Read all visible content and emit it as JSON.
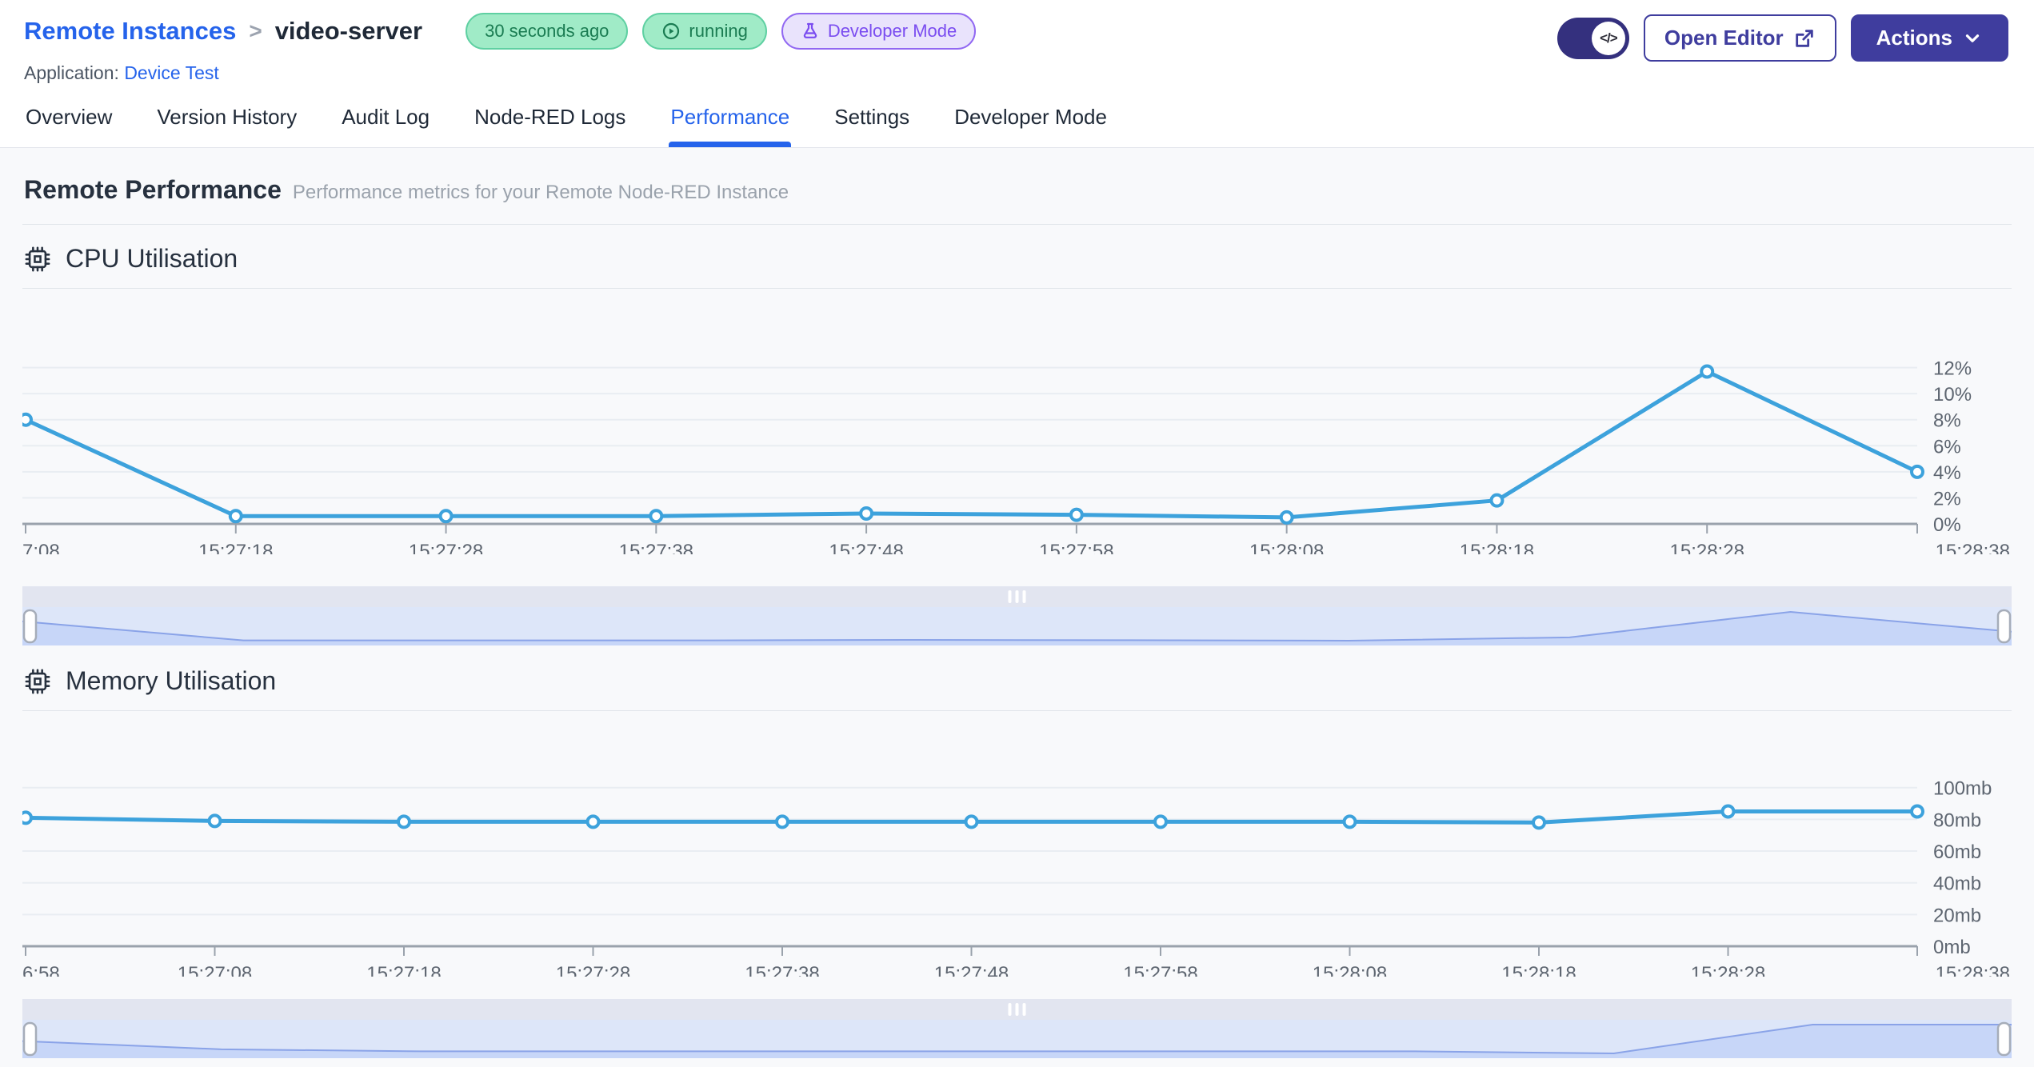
{
  "header": {
    "breadcrumb": "Remote Instances",
    "breadcrumb_separator": ">",
    "instance_name": "video-server",
    "badges": {
      "last_seen": "30 seconds ago",
      "status": "running",
      "mode": "Developer Mode"
    },
    "application_label": "Application:",
    "application_name": "Device Test",
    "developer_toggle_icon": "code-icon",
    "open_editor_label": "Open Editor",
    "open_editor_icon": "external-link-icon",
    "actions_label": "Actions",
    "actions_icon": "chevron-down-icon"
  },
  "tabs": [
    {
      "label": "Overview",
      "active": false
    },
    {
      "label": "Version History",
      "active": false
    },
    {
      "label": "Audit Log",
      "active": false
    },
    {
      "label": "Node-RED Logs",
      "active": false
    },
    {
      "label": "Performance",
      "active": true
    },
    {
      "label": "Settings",
      "active": false
    },
    {
      "label": "Developer Mode",
      "active": false
    }
  ],
  "page": {
    "title": "Remote Performance",
    "subtitle": "Performance metrics for your Remote Node-RED Instance"
  },
  "colors": {
    "accent_blue": "#2563eb",
    "indigo_button": "#3f3d9e",
    "chart_line": "#3da2dc",
    "badge_green_bg": "#a0ebc7",
    "badge_green_text": "#1a7c52",
    "badge_purple_bg": "#e9e3fc",
    "badge_purple_text": "#7a4cf0",
    "navigator_body": "#dde6f9",
    "navigator_area": "#c7d6f8"
  },
  "chart_data": [
    {
      "type": "line",
      "title": "CPU Utilisation",
      "icon": "cpu-chip-icon",
      "x_labels": [
        "7:08",
        "15:27:18",
        "15:27:28",
        "15:27:38",
        "15:27:48",
        "15:27:58",
        "15:28:08",
        "15:28:18",
        "15:28:28",
        "15:28:38"
      ],
      "values": [
        8,
        0.6,
        0.6,
        0.6,
        0.8,
        0.7,
        0.5,
        1.8,
        11.7,
        4
      ],
      "y_tick_values": [
        0,
        2,
        4,
        6,
        8,
        10,
        12
      ],
      "y_tick_labels": [
        "0%",
        "2%",
        "4%",
        "6%",
        "8%",
        "10%",
        "12%"
      ],
      "ylim": [
        0,
        14
      ],
      "ylabel": "",
      "xlabel": "",
      "grid": true,
      "legend": "none",
      "line_color": "#3da2dc",
      "navigator": true
    },
    {
      "type": "line",
      "title": "Memory Utilisation",
      "icon": "cpu-chip-icon",
      "x_labels": [
        "6:58",
        "15:27:08",
        "15:27:18",
        "15:27:28",
        "15:27:38",
        "15:27:48",
        "15:27:58",
        "15:28:08",
        "15:28:18",
        "15:28:28",
        "15:28:38"
      ],
      "values": [
        81,
        79,
        78.5,
        78.5,
        78.5,
        78.5,
        78.5,
        78.5,
        78,
        85,
        85
      ],
      "y_tick_values": [
        0,
        20,
        40,
        60,
        80,
        100
      ],
      "y_tick_labels": [
        "0mb",
        "20mb",
        "40mb",
        "60mb",
        "80mb",
        "100mb"
      ],
      "ylim": [
        0,
        115
      ],
      "ylabel": "",
      "xlabel": "",
      "grid": true,
      "legend": "none",
      "line_color": "#3da2dc",
      "navigator": true
    }
  ]
}
